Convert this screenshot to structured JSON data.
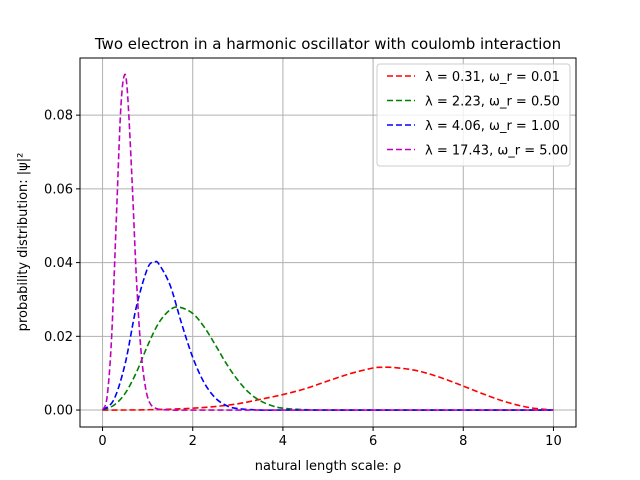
{
  "chart_data": {
    "type": "line",
    "title": "Two electron in a harmonic oscillator with coulomb interaction",
    "xlabel": "natural length scale: ρ",
    "ylabel": "probability distribution: |ψ|²",
    "xlim": [
      -0.5,
      10.5
    ],
    "ylim": [
      -0.0046,
      0.0955
    ],
    "xticks": [
      0,
      2,
      4,
      6,
      8,
      10
    ],
    "yticks": [
      0.0,
      0.02,
      0.04,
      0.06,
      0.08
    ],
    "xtick_labels": [
      "0",
      "2",
      "4",
      "6",
      "8",
      "10"
    ],
    "ytick_labels": [
      "0.00",
      "0.02",
      "0.04",
      "0.06",
      "0.08"
    ],
    "grid": true,
    "legend_position": "top-right",
    "line_style": "dashed",
    "series": [
      {
        "name": "λ = 0.31, ω_r = 0.01",
        "color": "#ff0000",
        "x": [
          0.0,
          0.5,
          1.0,
          1.5,
          2.0,
          2.5,
          3.0,
          3.5,
          4.0,
          4.5,
          5.0,
          5.5,
          6.0,
          6.2,
          6.5,
          7.0,
          7.5,
          8.0,
          8.5,
          9.0,
          9.5,
          10.0
        ],
        "y": [
          0.0,
          1e-05,
          8e-05,
          0.00024,
          0.0005,
          0.00095,
          0.0017,
          0.0029,
          0.0042,
          0.0058,
          0.0079,
          0.0099,
          0.0114,
          0.0116,
          0.0115,
          0.0106,
          0.0088,
          0.0065,
          0.0041,
          0.002,
          0.0006,
          0.0
        ]
      },
      {
        "name": "λ = 2.23, ω_r = 0.50",
        "color": "#008000",
        "x": [
          0.0,
          0.25,
          0.5,
          0.75,
          1.0,
          1.25,
          1.5,
          1.7,
          2.0,
          2.25,
          2.5,
          2.75,
          3.0,
          3.25,
          3.5,
          3.75,
          4.0,
          4.5,
          5.0,
          6.0,
          8.0,
          10.0
        ],
        "y": [
          0.0,
          0.0013,
          0.0045,
          0.0102,
          0.0175,
          0.0237,
          0.0272,
          0.0279,
          0.0262,
          0.0226,
          0.0177,
          0.0125,
          0.0081,
          0.0047,
          0.0025,
          0.0012,
          0.0005,
          0.0001,
          0.0,
          0.0,
          0.0,
          0.0
        ]
      },
      {
        "name": "λ = 4.06, ω_r = 1.00",
        "color": "#0000ff",
        "x": [
          0.0,
          0.25,
          0.5,
          0.75,
          1.0,
          1.15,
          1.25,
          1.5,
          1.75,
          2.0,
          2.25,
          2.5,
          2.75,
          3.0,
          3.5,
          4.0,
          5.0,
          6.0,
          8.0,
          10.0
        ],
        "y": [
          0.0,
          0.0028,
          0.0125,
          0.028,
          0.0385,
          0.0401,
          0.0396,
          0.0338,
          0.0236,
          0.0143,
          0.0075,
          0.0033,
          0.0012,
          0.0004,
          0.0,
          0.0,
          0.0,
          0.0,
          0.0,
          0.0
        ]
      },
      {
        "name": "λ = 17.43, ω_r = 5.00",
        "color": "#bf00bf",
        "x": [
          0.0,
          0.1,
          0.2,
          0.3,
          0.4,
          0.48,
          0.55,
          0.65,
          0.75,
          0.85,
          0.95,
          1.05,
          1.2,
          1.5,
          2.0,
          3.0,
          5.0,
          10.0
        ],
        "y": [
          0.0,
          0.0035,
          0.0195,
          0.05,
          0.0808,
          0.0907,
          0.0865,
          0.0635,
          0.036,
          0.0165,
          0.0063,
          0.0019,
          0.0004,
          0.0,
          0.0,
          0.0,
          0.0,
          0.0
        ]
      }
    ]
  }
}
